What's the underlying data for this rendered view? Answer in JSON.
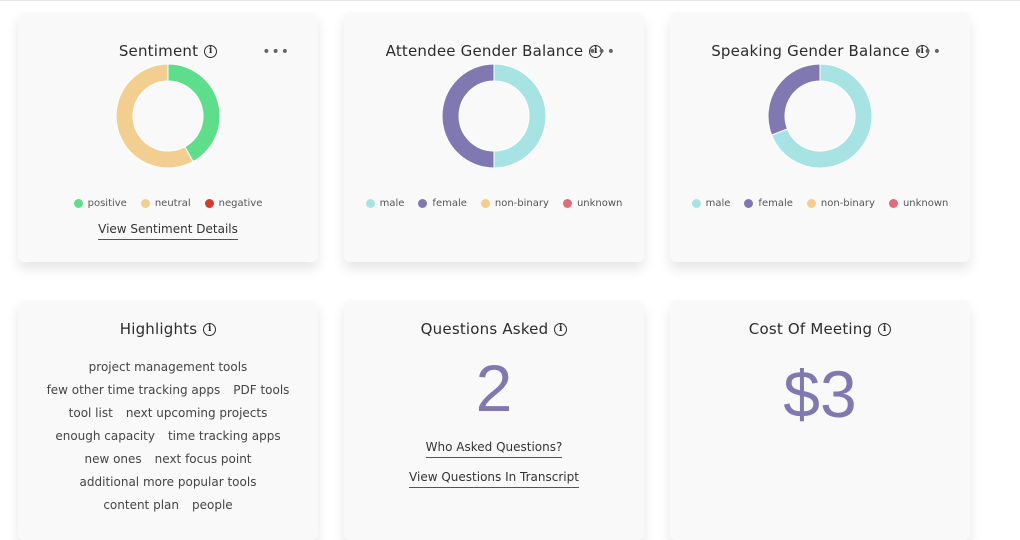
{
  "cards": {
    "sentiment": {
      "title": "Sentiment",
      "legend": [
        {
          "label": "positive",
          "color": "#5ede8a"
        },
        {
          "label": "neutral",
          "color": "#f2cf90"
        },
        {
          "label": "negative",
          "color": "#d23b2e"
        }
      ],
      "link": "View Sentiment Details",
      "shares": {
        "positive": 0.42,
        "neutral": 0.58,
        "negative": 0.0
      }
    },
    "attendee_gender": {
      "title": "Attendee Gender Balance",
      "legend": [
        {
          "label": "male",
          "color": "#a8e3e3"
        },
        {
          "label": "female",
          "color": "#8078b0"
        },
        {
          "label": "non-binary",
          "color": "#f2cf90"
        },
        {
          "label": "unknown",
          "color": "#e06c7a"
        }
      ],
      "shares": {
        "male": 0.5,
        "female": 0.5,
        "non-binary": 0.0,
        "unknown": 0.0
      }
    },
    "speaking_gender": {
      "title": "Speaking Gender Balance",
      "legend": [
        {
          "label": "male",
          "color": "#a8e3e3"
        },
        {
          "label": "female",
          "color": "#8078b0"
        },
        {
          "label": "non-binary",
          "color": "#f2cf90"
        },
        {
          "label": "unknown",
          "color": "#e06c7a"
        }
      ],
      "shares": {
        "male": 0.69,
        "female": 0.31,
        "non-binary": 0.0,
        "unknown": 0.0
      }
    },
    "highlights": {
      "title": "Highlights",
      "rows": [
        [
          "project management tools"
        ],
        [
          "few other time tracking apps",
          "PDF tools"
        ],
        [
          "tool list",
          "next upcoming projects"
        ],
        [
          "enough capacity",
          "time tracking apps"
        ],
        [
          "new ones",
          "next focus point"
        ],
        [
          "additional more popular tools"
        ],
        [
          "content plan",
          "people"
        ]
      ]
    },
    "questions": {
      "title": "Questions Asked",
      "value": "2",
      "link1": "Who Asked Questions?",
      "link2": "View Questions In Transcript"
    },
    "cost": {
      "title": "Cost Of Meeting",
      "value": "$3"
    }
  },
  "icons": {
    "info": "info-icon",
    "more": "more-horizontal-icon"
  }
}
